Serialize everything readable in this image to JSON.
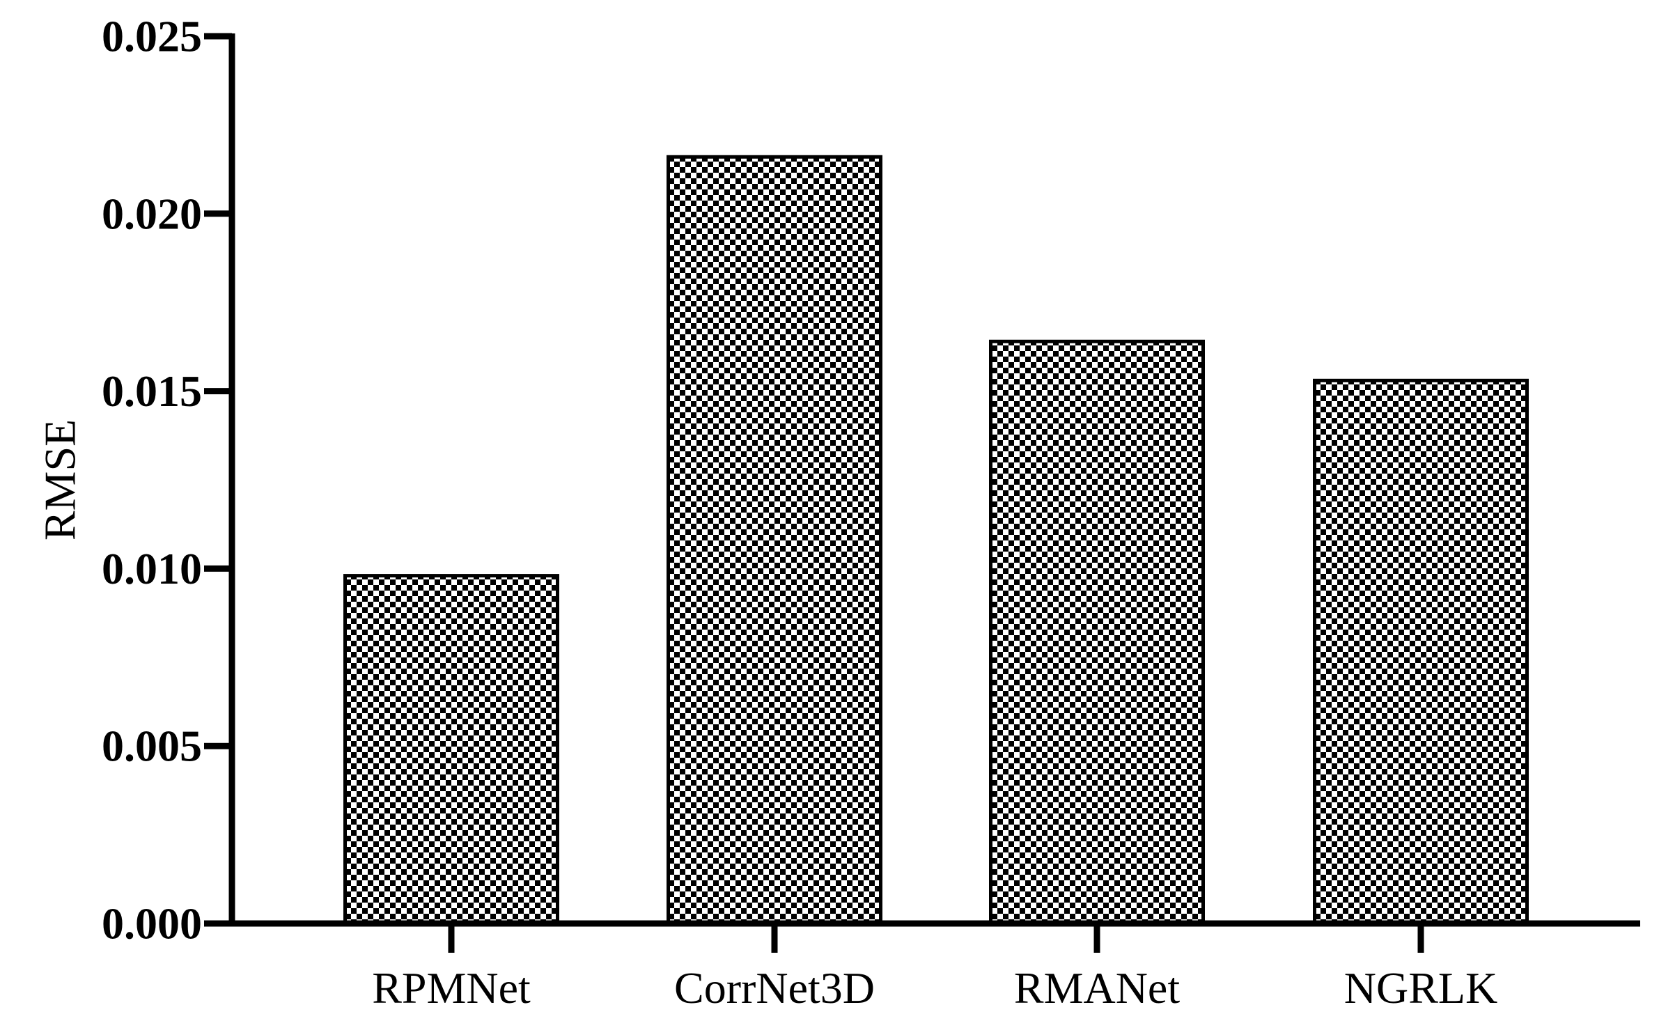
{
  "chart_data": {
    "type": "bar",
    "title": "",
    "xlabel": "",
    "ylabel": "RMSE",
    "categories": [
      "RPMNet",
      "CorrNet3D",
      "RMANet",
      "NGRLK"
    ],
    "values": [
      0.0098,
      0.0216,
      0.0164,
      0.0153
    ],
    "ylim": [
      0,
      0.025
    ],
    "yticks": [
      "0.000",
      "0.005",
      "0.010",
      "0.015",
      "0.020",
      "0.025"
    ],
    "grid": false,
    "legend": "none",
    "bar_fill": "black-and-white checkerboard pattern",
    "colors": {
      "bar_dark": "#000000",
      "bar_light": "#ffffff",
      "axis": "#000000"
    }
  }
}
